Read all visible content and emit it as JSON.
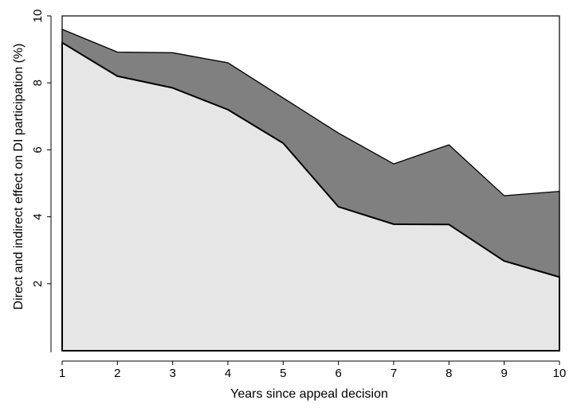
{
  "chart_data": {
    "type": "area",
    "title": "",
    "xlabel": "Years since appeal decision",
    "ylabel": "Direct and indirect effect on DI participation (%)",
    "x": [
      1,
      2,
      3,
      4,
      5,
      6,
      7,
      8,
      9,
      10
    ],
    "xlim": [
      1,
      10
    ],
    "ylim": [
      0,
      10
    ],
    "xticks": [
      1,
      2,
      3,
      4,
      5,
      6,
      7,
      8,
      9,
      10
    ],
    "yticks": [
      2,
      4,
      6,
      8,
      10
    ],
    "grid": false,
    "legend": "none",
    "series": [
      {
        "values": [
          9.2,
          8.2,
          7.85,
          7.2,
          6.2,
          4.3,
          3.78,
          3.77,
          2.68,
          2.2
        ],
        "color": "#e6e6e6"
      },
      {
        "values": [
          9.6,
          8.92,
          8.9,
          8.6,
          7.55,
          6.5,
          5.58,
          6.15,
          4.63,
          4.76
        ],
        "color": "#808080"
      }
    ]
  }
}
